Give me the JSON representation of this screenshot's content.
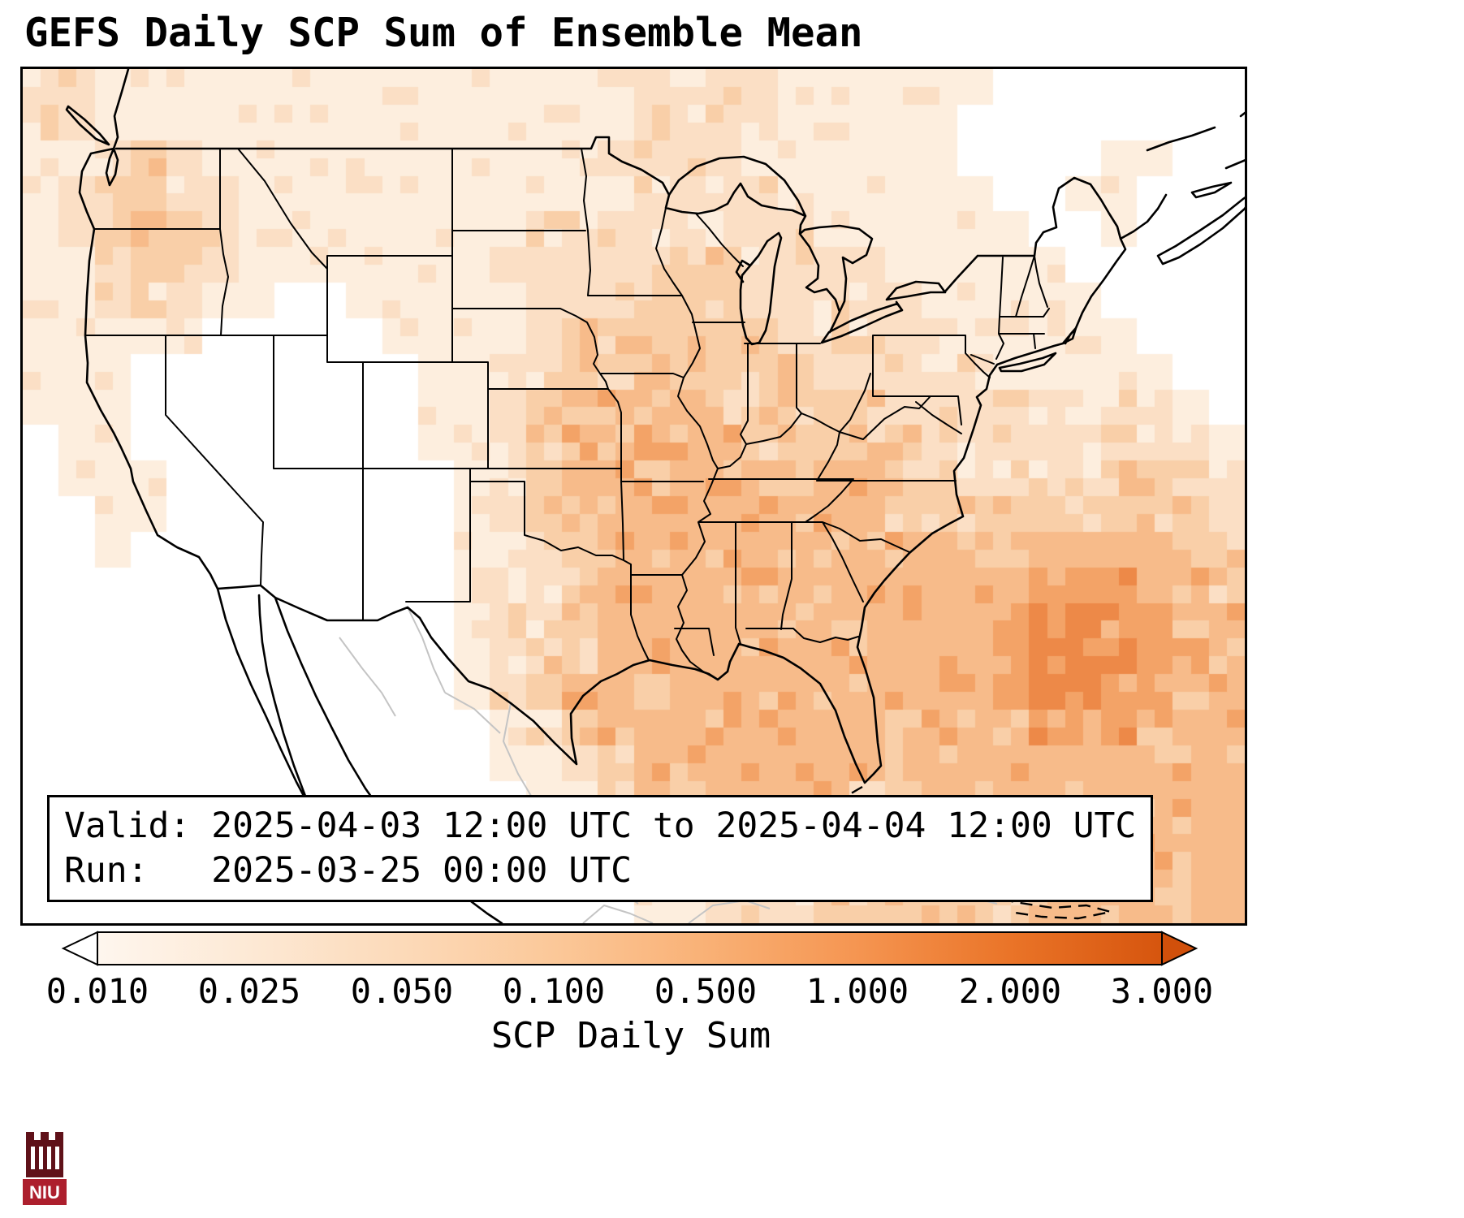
{
  "title": "GEFS Daily SCP Sum of Ensemble Mean",
  "info_box": {
    "line1": "Valid: 2025-04-03 12:00 UTC to 2025-04-04 12:00 UTC",
    "line2": "Run:   2025-03-25 00:00 UTC"
  },
  "colorbar": {
    "label": "SCP Daily Sum",
    "ticks": [
      "0.010",
      "0.025",
      "0.050",
      "0.100",
      "0.500",
      "1.000",
      "2.000",
      "3.000"
    ],
    "stop_colors": [
      "#fef6ee",
      "#fde9d5",
      "#fcdab9",
      "#fbc899",
      "#f9b176",
      "#f59551",
      "#ea7428",
      "#d6550e"
    ],
    "left_arrow_color": "#ffffff",
    "right_arrow_color": "#d1500b"
  },
  "logo": {
    "text": "NIU",
    "banner_color": "#ad1f2d",
    "castle_color": "#5f1119"
  },
  "heatmap": {
    "palette": [
      "#ffffff",
      "#fdeede",
      "#fbdfc5",
      "#f9cfa8",
      "#f7bb8a",
      "#f3a367",
      "#ed8948"
    ],
    "rows": [
      "2211111111111111122221111110000000",
      "2211111111111111122221111100000000",
      "1123211111111111222211111100001100",
      "1233221111111111122221111110011000",
      "1234321111111122222222111111001000",
      "1123321111111222223322221111100000",
      "1122211001111122233322222111110000",
      "1111100000111123333332222211111000",
      "1110000000011223343333222221111100",
      "1110000000011233444333332222212210",
      "0110000000011234444433333222222221",
      "0111000000001234444443443322223322",
      "0011000000001233444444443333333332",
      "0010000000001123444444444433444433",
      "0000000000001123444444444444555443",
      "0000000000001223444444444445565544",
      "0000000000001233444444444445666544",
      "0000000000001234434444444445665544",
      "0000000000000123444444444444555444",
      "0000000000000112344444444444444444",
      "0000000000000011233444433444444444",
      "0000000000000001123344433344444444",
      "0000000000000000112233333334444444",
      "0000000000000000011222333333444444"
    ]
  }
}
